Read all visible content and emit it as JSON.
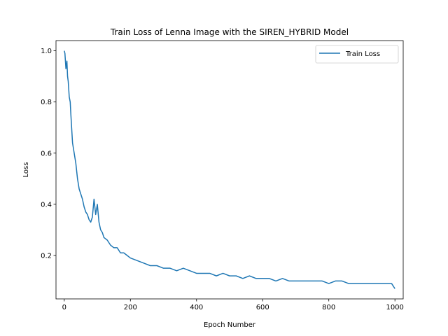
{
  "chart_data": {
    "type": "line",
    "title": "Train Loss of Lenna Image with the SIREN_HYBRID Model",
    "xlabel": "Epoch Number",
    "ylabel": "Loss",
    "xlim": [
      -25,
      1025
    ],
    "ylim": [
      0.03,
      1.04
    ],
    "xticks": [
      0,
      200,
      400,
      600,
      800,
      1000
    ],
    "yticks": [
      0.2,
      0.4,
      0.6,
      0.8,
      1.0
    ],
    "xtick_labels": [
      "0",
      "200",
      "400",
      "600",
      "800",
      "1000"
    ],
    "ytick_labels": [
      "0.2",
      "0.4",
      "0.6",
      "0.8",
      "1.0"
    ],
    "grid": false,
    "legend_position": "top-right",
    "series": [
      {
        "name": "Train Loss",
        "color": "#1f77b4",
        "x": [
          0,
          2,
          5,
          8,
          10,
          12,
          15,
          18,
          20,
          25,
          30,
          35,
          40,
          45,
          50,
          55,
          60,
          65,
          70,
          75,
          80,
          85,
          90,
          95,
          100,
          105,
          110,
          115,
          120,
          130,
          140,
          150,
          160,
          170,
          180,
          190,
          200,
          220,
          240,
          260,
          280,
          300,
          320,
          340,
          360,
          380,
          400,
          420,
          440,
          460,
          480,
          500,
          520,
          540,
          560,
          580,
          600,
          620,
          640,
          660,
          680,
          700,
          720,
          740,
          760,
          780,
          800,
          820,
          840,
          860,
          880,
          900,
          920,
          940,
          960,
          980,
          990,
          1000
        ],
        "y": [
          1.0,
          0.99,
          0.93,
          0.96,
          0.9,
          0.88,
          0.82,
          0.8,
          0.75,
          0.64,
          0.6,
          0.56,
          0.5,
          0.46,
          0.44,
          0.42,
          0.39,
          0.37,
          0.36,
          0.34,
          0.33,
          0.35,
          0.42,
          0.36,
          0.4,
          0.33,
          0.3,
          0.29,
          0.27,
          0.26,
          0.24,
          0.23,
          0.23,
          0.21,
          0.21,
          0.2,
          0.19,
          0.18,
          0.17,
          0.16,
          0.16,
          0.15,
          0.15,
          0.14,
          0.15,
          0.14,
          0.13,
          0.13,
          0.13,
          0.12,
          0.13,
          0.12,
          0.12,
          0.11,
          0.12,
          0.11,
          0.11,
          0.11,
          0.1,
          0.11,
          0.1,
          0.1,
          0.1,
          0.1,
          0.1,
          0.1,
          0.09,
          0.1,
          0.1,
          0.09,
          0.09,
          0.09,
          0.09,
          0.09,
          0.09,
          0.09,
          0.09,
          0.07
        ]
      }
    ]
  }
}
